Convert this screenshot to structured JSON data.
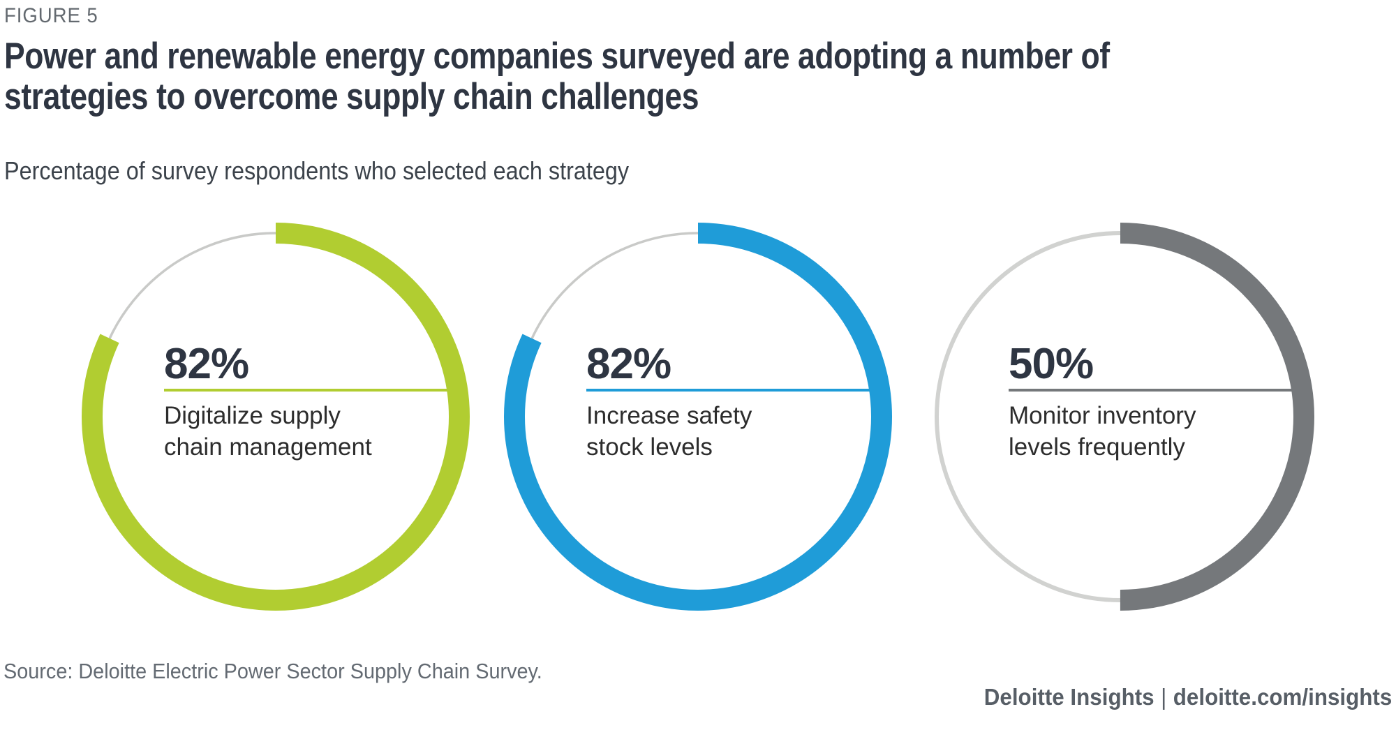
{
  "figure_label": "FIGURE 5",
  "title": {
    "line1": "Power and renewable energy companies surveyed are adopting a number of",
    "line2": "strategies to overcome supply chain challenges"
  },
  "subtitle": "Percentage of survey respondents who selected each strategy",
  "source_note": "Source: Deloitte Electric Power Sector Supply Chain Survey.",
  "footer": {
    "brand": "Deloitte Insights",
    "separator": "|",
    "url": "deloitte.com/insights"
  },
  "colors": {
    "figure_label_text": "#63696f",
    "title_text": "#2e3542",
    "subtitle_text": "#3c434b",
    "value_text": "#2e3542",
    "label_text": "#2d2d2d",
    "source_text": "#636a72",
    "footer_text": "#575e66",
    "green_accent": "#b1cd31",
    "blue_accent": "#1f9cd8",
    "gray_accent": "#75787b"
  },
  "chart_data": {
    "type": "pie",
    "variant": "donut-progress-rings",
    "title": "Power and renewable energy companies surveyed are adopting a number of strategies to overcome supply chain challenges",
    "subtitle": "Percentage of survey respondents who selected each strategy",
    "unit": "%",
    "arc_start": "top",
    "arc_direction": "clockwise",
    "items": [
      {
        "value": 82,
        "value_label": "82%",
        "label": "Digitalize supply chain management",
        "label_lines": [
          "Digitalize supply",
          "chain management"
        ],
        "arc_color": "#b1cd31",
        "track_color": "#c9cac8",
        "track_width": 3.5
      },
      {
        "value": 82,
        "value_label": "82%",
        "label": "Increase safety stock levels",
        "label_lines": [
          "Increase safety",
          "stock levels"
        ],
        "arc_color": "#1f9cd8",
        "track_color": "#c9cac8",
        "track_width": 3.5
      },
      {
        "value": 50,
        "value_label": "50%",
        "label": "Monitor inventory levels frequently",
        "label_lines": [
          "Monitor inventory",
          "levels frequently"
        ],
        "arc_color": "#75787b",
        "track_color": "#d1d2d0",
        "track_width": 6
      }
    ]
  }
}
